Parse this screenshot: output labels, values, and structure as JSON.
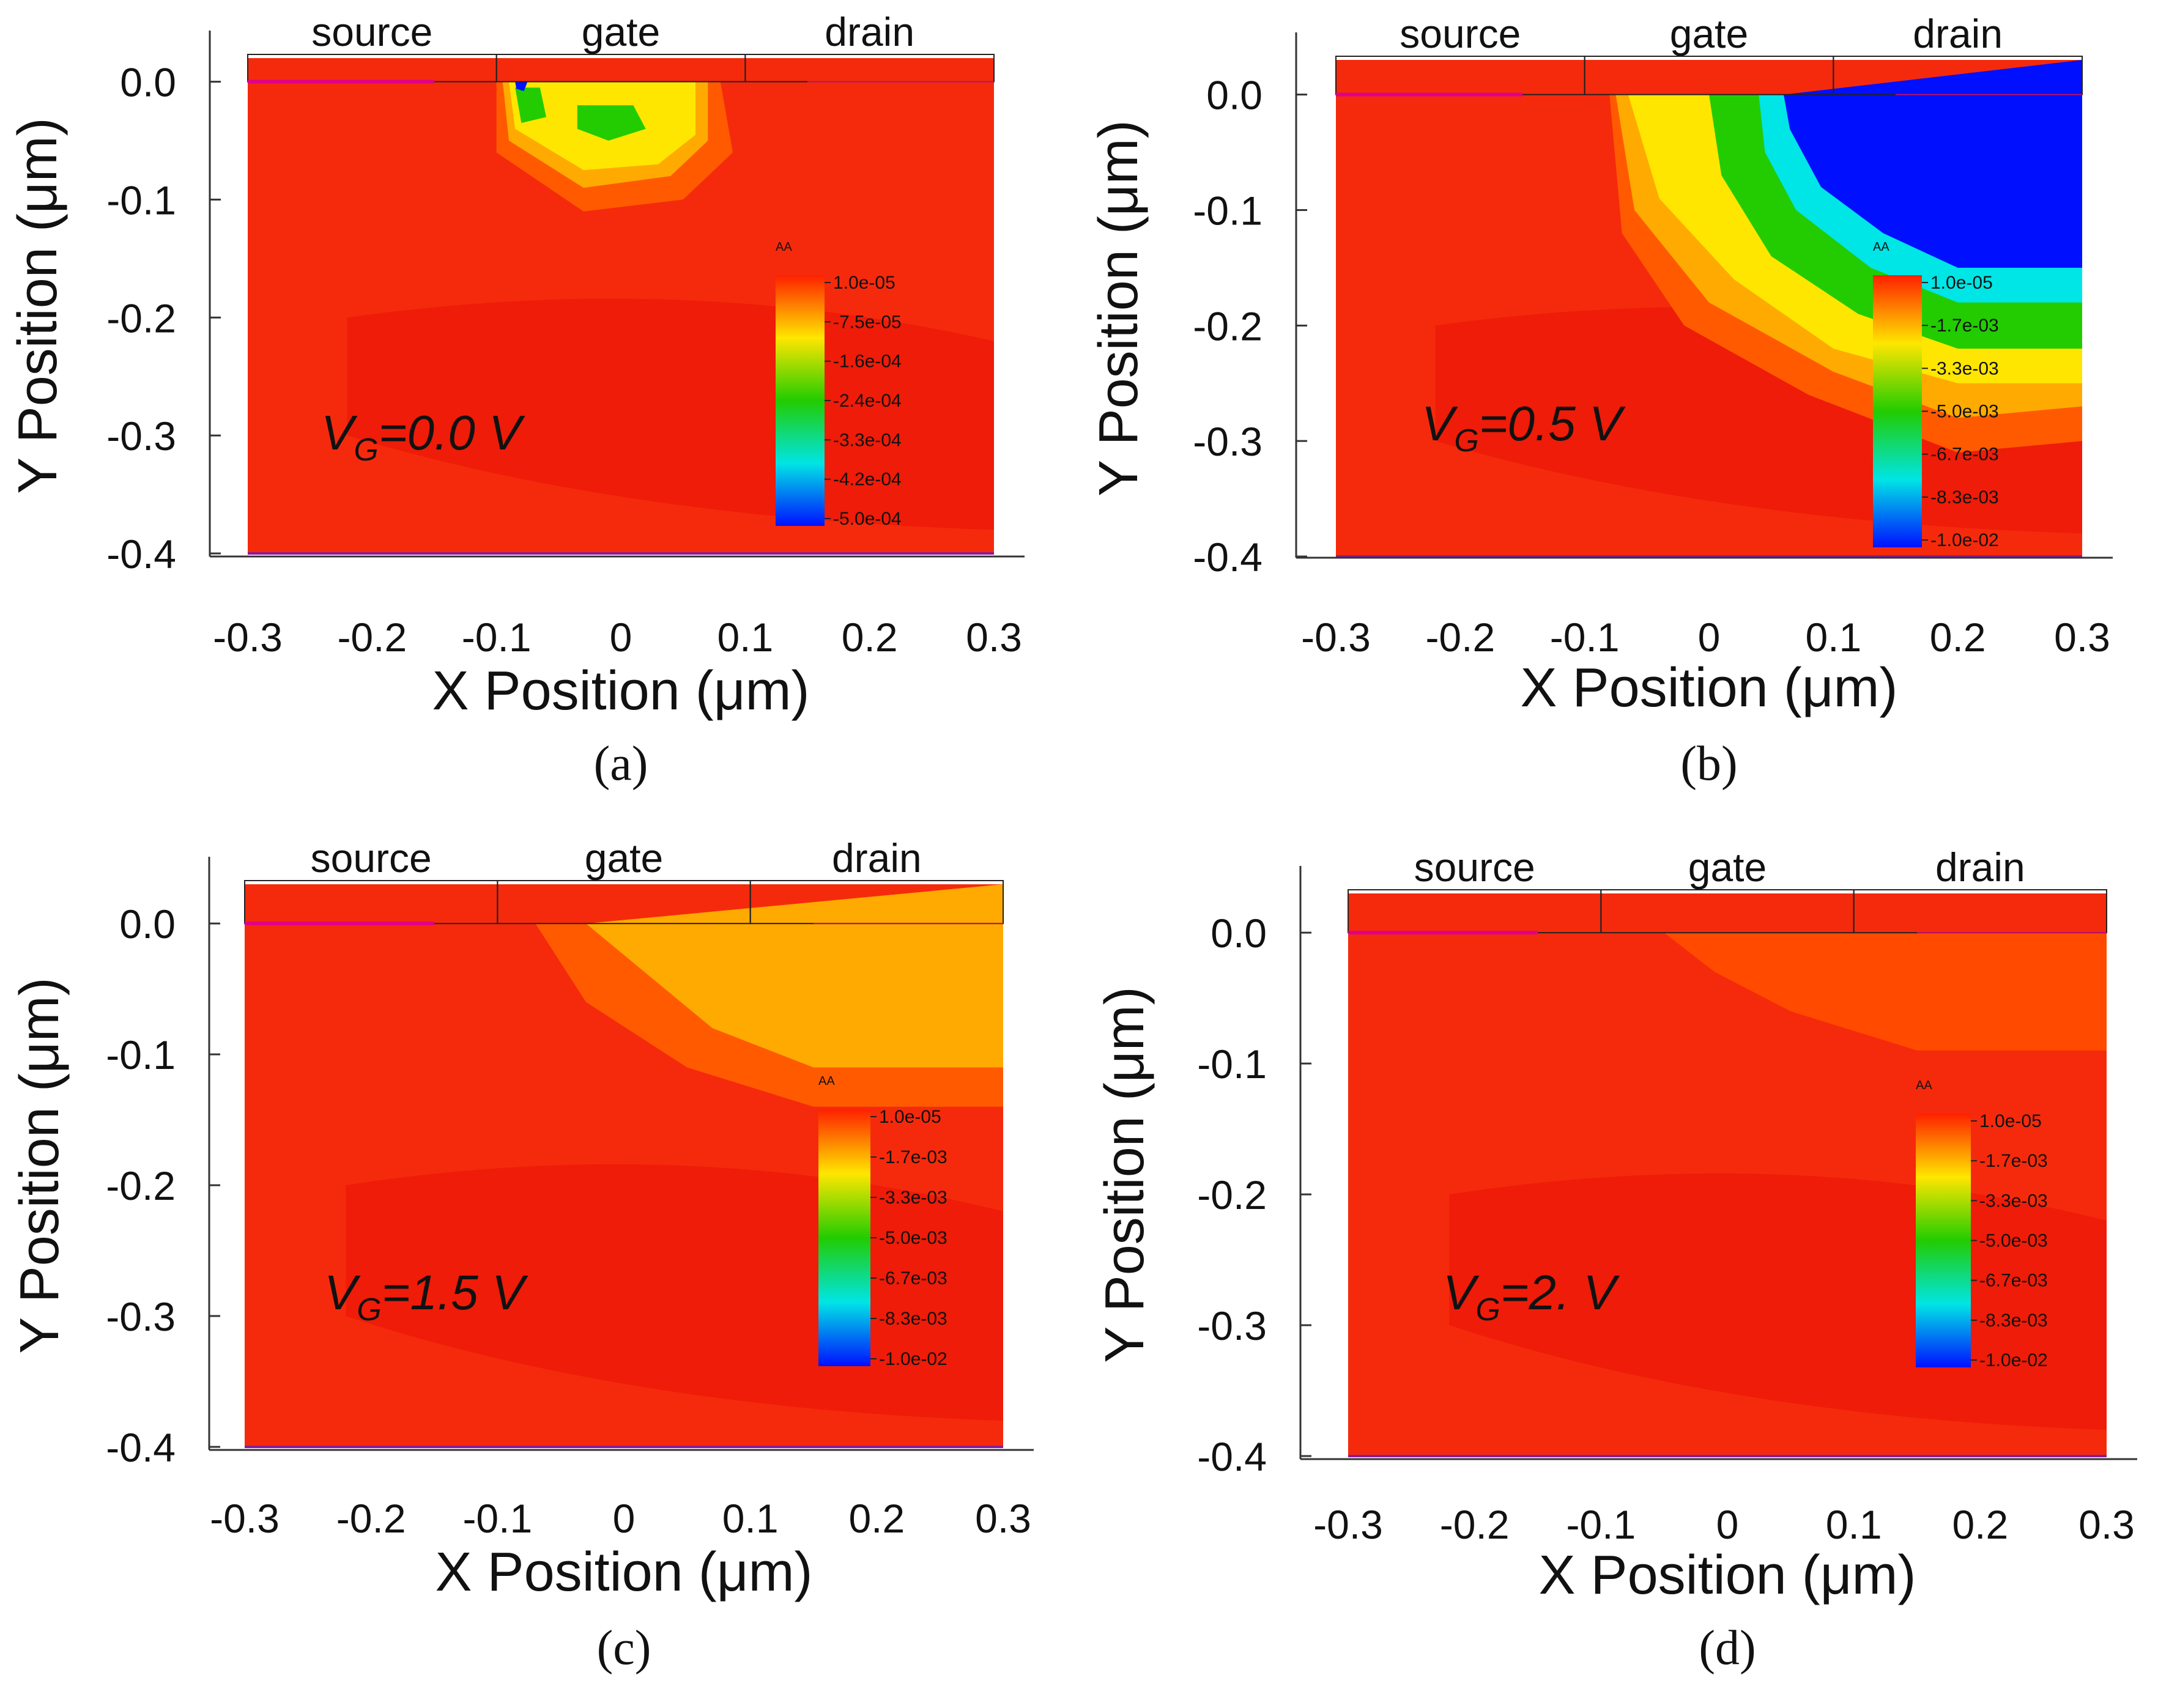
{
  "chart_data": [
    {
      "type": "heatmap",
      "caption": "(a)",
      "annotation": {
        "var": "V",
        "sub": "G",
        "value": "=0.0 V"
      },
      "xlabel": "X Position  (μm)",
      "ylabel": "Y Position  (μm)",
      "xlim": [
        -0.3,
        0.3
      ],
      "ylim": [
        -0.4,
        0.02
      ],
      "xticks": [
        -0.3,
        -0.2,
        -0.1,
        0,
        0.1,
        0.2,
        0.3
      ],
      "yticks": [
        0.0,
        -0.1,
        -0.2,
        -0.3,
        -0.4
      ],
      "xtick_labels": [
        "-0.3",
        "-0.2",
        "-0.1",
        "0",
        "0.1",
        "0.2",
        "0.3"
      ],
      "ytick_labels": [
        "0.0",
        "-0.1",
        "-0.2",
        "-0.3",
        "-0.4"
      ],
      "regions": [
        {
          "label": "source",
          "x_range": [
            -0.3,
            -0.1
          ]
        },
        {
          "label": "gate",
          "x_range": [
            -0.1,
            0.1
          ]
        },
        {
          "label": "drain",
          "x_range": [
            0.1,
            0.3
          ]
        }
      ],
      "colorbar_title": "AA",
      "colorbar_labels": [
        "1.0e-05",
        "-7.5e-05",
        "-1.6e-04",
        "-2.4e-04",
        "-3.3e-04",
        "-4.2e-04",
        "-5.0e-04"
      ],
      "colorbar_colors": [
        "#ff2000",
        "#ffe600",
        "#22cc00",
        "#00e5e5",
        "#0010ff"
      ],
      "field_description": "mostly 1.0e-05; depletion pocket under gate",
      "contours": [
        {
          "level_index": 1,
          "color": "#ff5a00",
          "shape": [
            [
              -0.1,
              0.0
            ],
            [
              0.08,
              0.0
            ],
            [
              0.09,
              -0.06
            ],
            [
              0.05,
              -0.1
            ],
            [
              -0.03,
              -0.11
            ],
            [
              -0.1,
              -0.06
            ]
          ]
        },
        {
          "level_index": 2,
          "color": "#ffaa00",
          "shape": [
            [
              -0.095,
              0.0
            ],
            [
              0.07,
              0.0
            ],
            [
              0.07,
              -0.05
            ],
            [
              0.04,
              -0.08
            ],
            [
              -0.03,
              -0.09
            ],
            [
              -0.09,
              -0.05
            ]
          ]
        },
        {
          "level_index": 3,
          "color": "#ffe600",
          "shape": [
            [
              -0.09,
              0.0
            ],
            [
              0.06,
              0.0
            ],
            [
              0.06,
              -0.045
            ],
            [
              0.03,
              -0.07
            ],
            [
              -0.03,
              -0.075
            ],
            [
              -0.085,
              -0.04
            ]
          ]
        },
        {
          "level_index": 4,
          "color": "#22cc00",
          "shape": [
            [
              -0.085,
              -0.005
            ],
            [
              -0.065,
              -0.005
            ],
            [
              -0.06,
              -0.03
            ],
            [
              -0.08,
              -0.035
            ]
          ]
        },
        {
          "level_index": 4,
          "color": "#22cc00",
          "shape": [
            [
              -0.035,
              -0.02
            ],
            [
              0.01,
              -0.02
            ],
            [
              0.02,
              -0.04
            ],
            [
              -0.01,
              -0.05
            ],
            [
              -0.035,
              -0.04
            ]
          ]
        },
        {
          "level_index": 6,
          "color": "#0010ff",
          "shape": [
            [
              -0.085,
              0.0
            ],
            [
              -0.075,
              0.0
            ],
            [
              -0.078,
              -0.008
            ],
            [
              -0.084,
              -0.006
            ]
          ]
        }
      ]
    },
    {
      "type": "heatmap",
      "caption": "(b)",
      "annotation": {
        "var": "V",
        "sub": "G",
        "value": "=0.5 V"
      },
      "xlabel": "X Position  (μm)",
      "ylabel": "Y Position  (μm)",
      "xlim": [
        -0.3,
        0.3
      ],
      "ylim": [
        -0.4,
        0.03
      ],
      "xticks": [
        -0.3,
        -0.2,
        -0.1,
        0,
        0.1,
        0.2,
        0.3
      ],
      "yticks": [
        0.0,
        -0.1,
        -0.2,
        -0.3,
        -0.4
      ],
      "xtick_labels": [
        "-0.3",
        "-0.2",
        "-0.1",
        "0",
        "0.1",
        "0.2",
        "0.3"
      ],
      "ytick_labels": [
        "0.0",
        "-0.1",
        "-0.2",
        "-0.3",
        "-0.4"
      ],
      "regions": [
        {
          "label": "source",
          "x_range": [
            -0.3,
            -0.1
          ]
        },
        {
          "label": "gate",
          "x_range": [
            -0.1,
            0.1
          ]
        },
        {
          "label": "drain",
          "x_range": [
            0.1,
            0.3
          ]
        }
      ],
      "colorbar_title": "AA",
      "colorbar_labels": [
        "1.0e-05",
        "-1.7e-03",
        "-3.3e-03",
        "-5.0e-03",
        "-6.7e-03",
        "-8.3e-03",
        "-1.0e-02"
      ],
      "colorbar_colors": [
        "#ff2000",
        "#ffe600",
        "#22cc00",
        "#00e5e5",
        "#0010ff"
      ],
      "field_description": "strong depletion region under drain side",
      "contours": [
        {
          "level_index": 1,
          "color": "#ff5a00",
          "shape": [
            [
              -0.08,
              0.0
            ],
            [
              0.3,
              0.0
            ],
            [
              0.3,
              -0.3
            ],
            [
              0.2,
              -0.31
            ],
            [
              0.08,
              -0.26
            ],
            [
              -0.02,
              -0.2
            ],
            [
              -0.07,
              -0.12
            ]
          ]
        },
        {
          "level_index": 2,
          "color": "#ffaa00",
          "shape": [
            [
              -0.075,
              0.0
            ],
            [
              0.3,
              0.0
            ],
            [
              0.3,
              -0.27
            ],
            [
              0.2,
              -0.28
            ],
            [
              0.1,
              -0.24
            ],
            [
              0.0,
              -0.18
            ],
            [
              -0.06,
              -0.1
            ]
          ]
        },
        {
          "level_index": 3,
          "color": "#ffe600",
          "shape": [
            [
              -0.065,
              0.0
            ],
            [
              0.3,
              0.0
            ],
            [
              0.3,
              -0.25
            ],
            [
              0.2,
              -0.25
            ],
            [
              0.1,
              -0.22
            ],
            [
              0.02,
              -0.16
            ],
            [
              -0.04,
              -0.09
            ]
          ]
        },
        {
          "level_index": 4,
          "color": "#22cc00",
          "shape": [
            [
              0.0,
              0.0
            ],
            [
              0.3,
              0.0
            ],
            [
              0.3,
              -0.22
            ],
            [
              0.2,
              -0.22
            ],
            [
              0.12,
              -0.19
            ],
            [
              0.05,
              -0.14
            ],
            [
              0.01,
              -0.07
            ]
          ]
        },
        {
          "level_index": 5,
          "color": "#00e5e5",
          "shape": [
            [
              0.04,
              0.0
            ],
            [
              0.3,
              0.0
            ],
            [
              0.3,
              -0.18
            ],
            [
              0.2,
              -0.18
            ],
            [
              0.13,
              -0.15
            ],
            [
              0.07,
              -0.1
            ],
            [
              0.045,
              -0.05
            ]
          ]
        },
        {
          "level_index": 6,
          "color": "#0010ff",
          "shape": [
            [
              0.06,
              0.0
            ],
            [
              0.3,
              0.03
            ],
            [
              0.3,
              -0.15
            ],
            [
              0.2,
              -0.15
            ],
            [
              0.14,
              -0.12
            ],
            [
              0.09,
              -0.08
            ],
            [
              0.065,
              -0.03
            ]
          ]
        }
      ]
    },
    {
      "type": "heatmap",
      "caption": "(c)",
      "annotation": {
        "var": "V",
        "sub": "G",
        "value": "=1.5 V"
      },
      "xlabel": "X Position  (μm)",
      "ylabel": "Y Position  (μm)",
      "xlim": [
        -0.3,
        0.3
      ],
      "ylim": [
        -0.4,
        0.03
      ],
      "xticks": [
        -0.3,
        -0.2,
        -0.1,
        0,
        0.1,
        0.2,
        0.3
      ],
      "yticks": [
        0.0,
        -0.1,
        -0.2,
        -0.3,
        -0.4
      ],
      "xtick_labels": [
        "-0.3",
        "-0.2",
        "-0.1",
        "0",
        "0.1",
        "0.2",
        "0.3"
      ],
      "ytick_labels": [
        "0.0",
        "-0.1",
        "-0.2",
        "-0.3",
        "-0.4"
      ],
      "regions": [
        {
          "label": "source",
          "x_range": [
            -0.3,
            -0.1
          ]
        },
        {
          "label": "gate",
          "x_range": [
            -0.1,
            0.1
          ]
        },
        {
          "label": "drain",
          "x_range": [
            0.1,
            0.3
          ]
        }
      ],
      "colorbar_title": "AA",
      "colorbar_labels": [
        "1.0e-05",
        "-1.7e-03",
        "-3.3e-03",
        "-5.0e-03",
        "-6.7e-03",
        "-8.3e-03",
        "-1.0e-02"
      ],
      "colorbar_colors": [
        "#ff2000",
        "#ffe600",
        "#22cc00",
        "#00e5e5",
        "#0010ff"
      ],
      "field_description": "weak depletion toward drain",
      "contours": [
        {
          "level_index": 1,
          "color": "#ff5a00",
          "shape": [
            [
              -0.07,
              0.0
            ],
            [
              0.3,
              0.0
            ],
            [
              0.3,
              -0.14
            ],
            [
              0.15,
              -0.14
            ],
            [
              0.05,
              -0.11
            ],
            [
              -0.03,
              -0.06
            ]
          ]
        },
        {
          "level_index": 2,
          "color": "#ffaa00",
          "shape": [
            [
              -0.03,
              0.0
            ],
            [
              0.3,
              0.03
            ],
            [
              0.3,
              -0.11
            ],
            [
              0.15,
              -0.11
            ],
            [
              0.07,
              -0.08
            ],
            [
              0.02,
              -0.04
            ]
          ]
        }
      ]
    },
    {
      "type": "heatmap",
      "caption": "(d)",
      "annotation": {
        "var": "V",
        "sub": "G",
        "value": "=2. V"
      },
      "xlabel": "X Position  (μm)",
      "ylabel": "Y Position  (μm)",
      "xlim": [
        -0.3,
        0.3
      ],
      "ylim": [
        -0.4,
        0.03
      ],
      "xticks": [
        -0.3,
        -0.2,
        -0.1,
        0,
        0.1,
        0.2,
        0.3
      ],
      "yticks": [
        0.0,
        -0.1,
        -0.2,
        -0.3,
        -0.4
      ],
      "xtick_labels": [
        "-0.3",
        "-0.2",
        "-0.1",
        "0",
        "0.1",
        "0.2",
        "0.3"
      ],
      "ytick_labels": [
        "0.0",
        "-0.1",
        "-0.2",
        "-0.3",
        "-0.4"
      ],
      "regions": [
        {
          "label": "source",
          "x_range": [
            -0.3,
            -0.1
          ]
        },
        {
          "label": "gate",
          "x_range": [
            -0.1,
            0.1
          ]
        },
        {
          "label": "drain",
          "x_range": [
            0.1,
            0.3
          ]
        }
      ],
      "colorbar_title": "AA",
      "colorbar_labels": [
        "1.0e-05",
        "-1.7e-03",
        "-3.3e-03",
        "-5.0e-03",
        "-6.7e-03",
        "-8.3e-03",
        "-1.0e-02"
      ],
      "colorbar_colors": [
        "#ff2000",
        "#ffe600",
        "#22cc00",
        "#00e5e5",
        "#0010ff"
      ],
      "field_description": "nearly uniform, faint band toward drain",
      "contours": [
        {
          "level_index": 1,
          "color": "#ff4a00",
          "shape": [
            [
              -0.05,
              0.0
            ],
            [
              0.3,
              0.0
            ],
            [
              0.3,
              -0.09
            ],
            [
              0.15,
              -0.09
            ],
            [
              0.05,
              -0.06
            ],
            [
              -0.01,
              -0.03
            ]
          ]
        }
      ]
    }
  ]
}
